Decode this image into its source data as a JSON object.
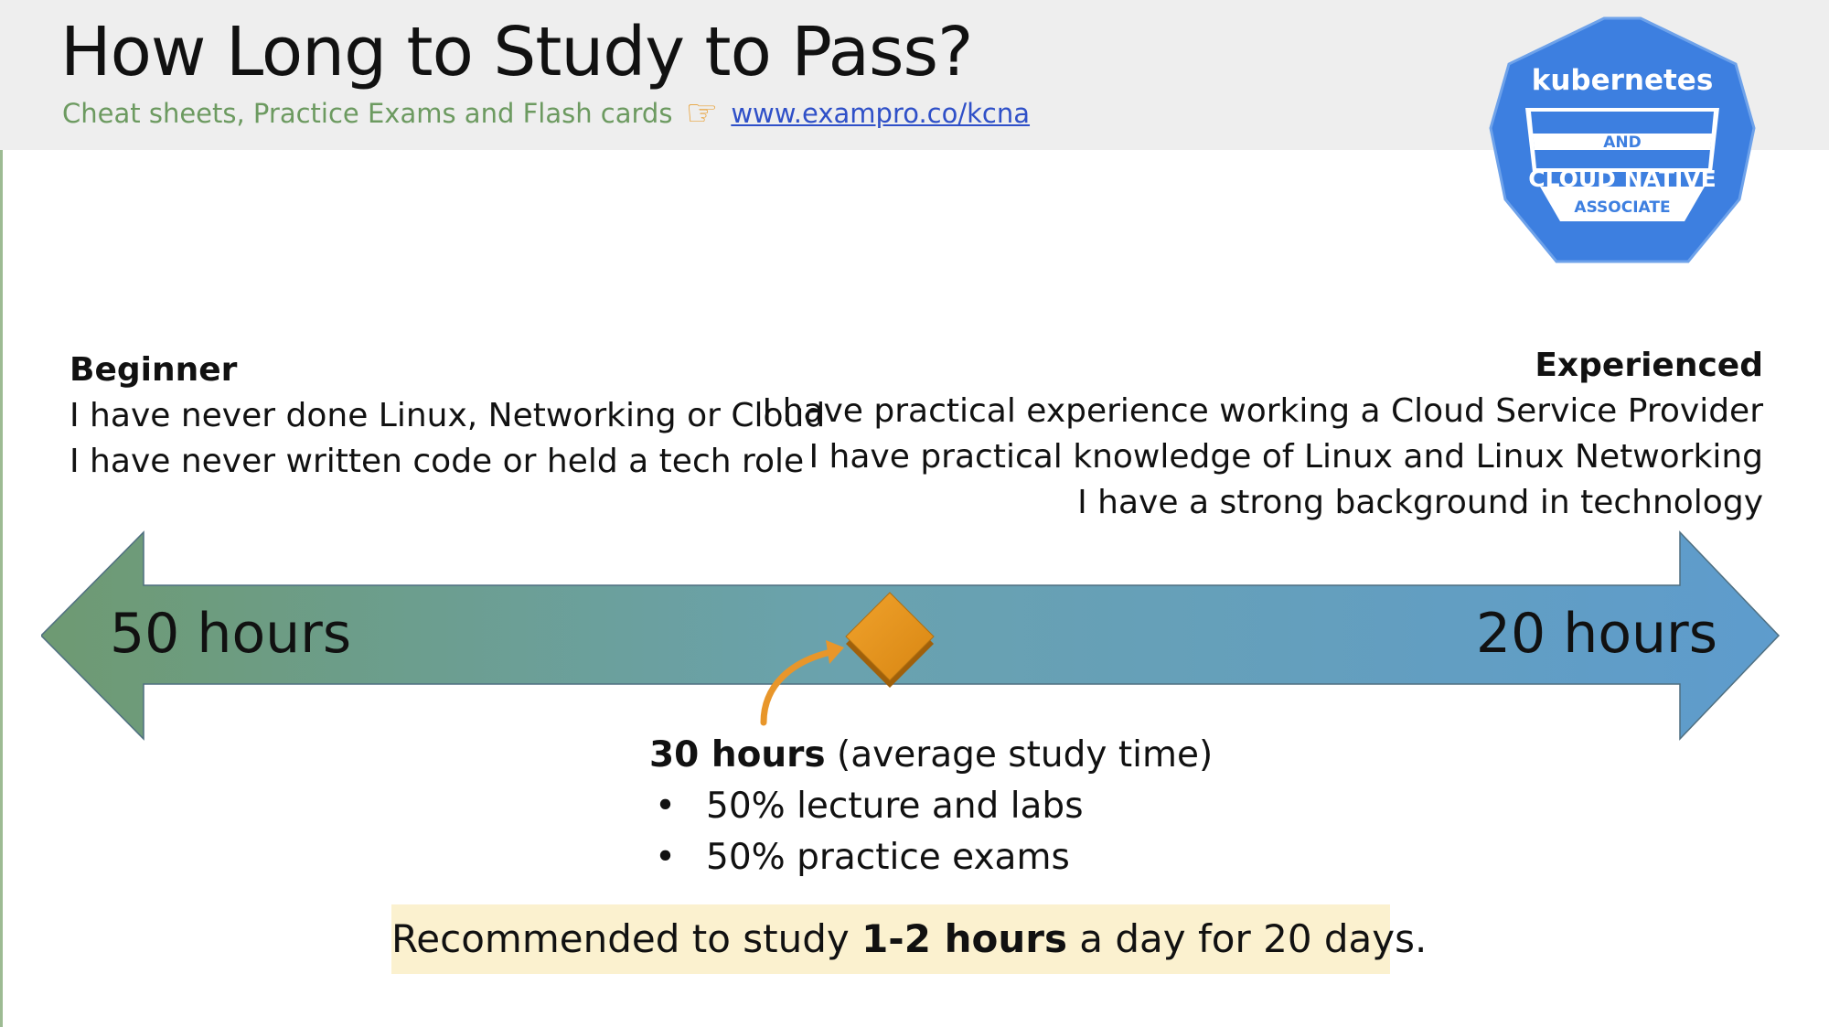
{
  "header": {
    "title": "How Long to Study to Pass?",
    "subtitle_text": "Cheat sheets, Practice Exams and Flash cards",
    "subtitle_link": "www.exampro.co/kcna"
  },
  "badge": {
    "line1": "kubernetes",
    "line2": "AND",
    "line3": "CLOUD NATIVE",
    "line4": "ASSOCIATE"
  },
  "beginner": {
    "heading": "Beginner",
    "lines": [
      "I have never done Linux, Networking or Cloud",
      "I have never written code or held a tech role"
    ]
  },
  "experienced": {
    "heading": "Experienced",
    "lines": [
      "I have practical experience working a Cloud Service Provider",
      "I have practical knowledge of Linux and Linux Networking",
      "I have a strong background in technology"
    ]
  },
  "timeline": {
    "left_label": "50 hours",
    "right_label": "20 hours"
  },
  "average": {
    "hours": "30 hours",
    "note": "(average study time)",
    "bullets": [
      "50% lecture and labs",
      "50% practice exams"
    ]
  },
  "recommendation": {
    "prefix": "Recommended to study ",
    "emphasis": "1-2 hours",
    "suffix": " a day for 20 days."
  },
  "colors": {
    "arrow_left": "#6e9a72",
    "arrow_right": "#5e9ccd",
    "diamond": "#e0901c",
    "badge_blue": "#3d7fe0",
    "subtitle_green": "#6c9a60",
    "link_blue": "#2f50c8",
    "recommend_bg": "#fbf1cf"
  }
}
